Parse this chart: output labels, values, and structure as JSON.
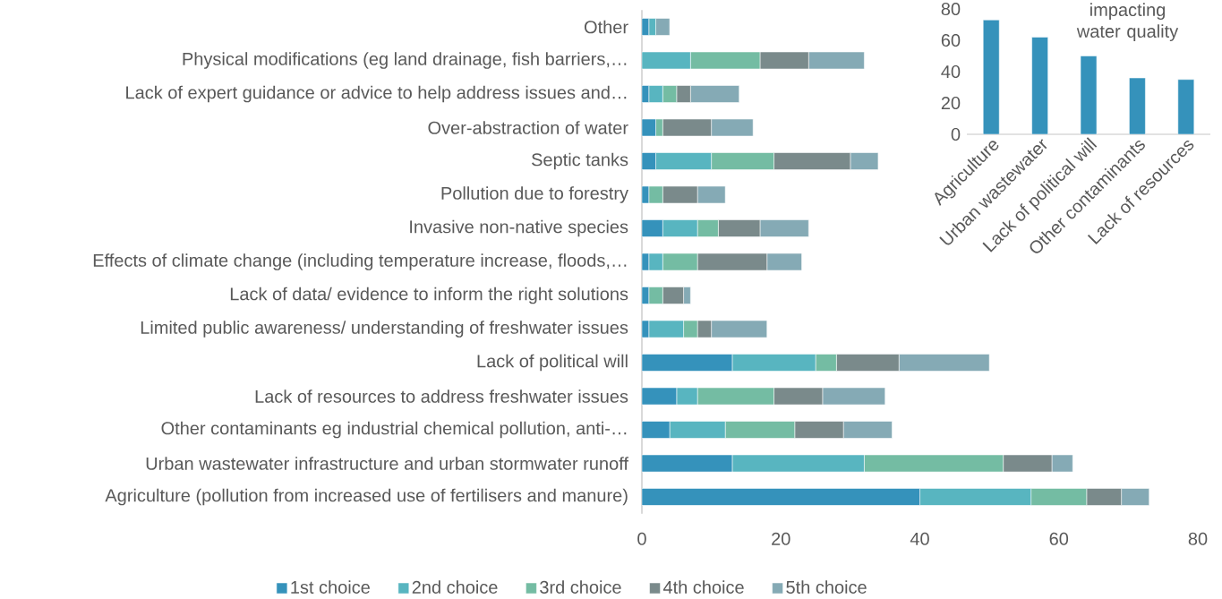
{
  "chart_data": [
    {
      "type": "bar",
      "orientation": "horizontal",
      "stacked": true,
      "legend": "bottom",
      "categories": [
        "Other",
        "Physical modifications (eg land drainage, fish barriers,…",
        "Lack of expert guidance or advice to help address issues and…",
        "Over-abstraction of water",
        "Septic tanks",
        "Pollution due to forestry",
        "Invasive non-native species",
        "Effects of climate change (including temperature increase, floods,…",
        "Lack of data/ evidence to inform the right solutions",
        "Limited public awareness/ understanding of freshwater issues",
        "Lack of political will",
        "Lack of resources to address freshwater issues",
        "Other contaminants eg industrial chemical pollution, anti-…",
        "Urban wastewater infrastructure and urban stormwater runoff",
        "Agriculture (pollution from increased use of fertilisers and manure)"
      ],
      "series": [
        {
          "name": "1st choice",
          "color": "#3592bb",
          "values": [
            1,
            0,
            1,
            2,
            2,
            1,
            3,
            1,
            1,
            1,
            13,
            5,
            4,
            13,
            40
          ]
        },
        {
          "name": "2nd choice",
          "color": "#58b5c0",
          "values": [
            1,
            7,
            2,
            0,
            8,
            0,
            5,
            2,
            0,
            5,
            12,
            3,
            8,
            19,
            16
          ]
        },
        {
          "name": "3rd choice",
          "color": "#74bca3",
          "values": [
            0,
            10,
            2,
            1,
            9,
            2,
            3,
            5,
            2,
            2,
            3,
            11,
            10,
            20,
            8
          ]
        },
        {
          "name": "4th choice",
          "color": "#7a8a8b",
          "values": [
            0,
            7,
            2,
            7,
            11,
            5,
            6,
            10,
            3,
            2,
            9,
            7,
            7,
            7,
            5
          ]
        },
        {
          "name": "5th choice",
          "color": "#85aab5",
          "values": [
            2,
            8,
            7,
            6,
            4,
            4,
            7,
            5,
            1,
            8,
            13,
            9,
            7,
            3,
            4
          ]
        }
      ],
      "xlim": [
        0,
        80
      ],
      "xticks": [
        0,
        20,
        40,
        60,
        80
      ]
    },
    {
      "type": "bar",
      "title": "impacting water quality",
      "categories": [
        "Agriculture",
        "Urban wastewater",
        "Lack of political will",
        "Other contaminants",
        "Lack of resources"
      ],
      "values": [
        73,
        62,
        50,
        36,
        35
      ],
      "color": "#3592bb",
      "ylim": [
        0,
        80
      ],
      "yticks": [
        0,
        20,
        40,
        60,
        80
      ]
    }
  ]
}
